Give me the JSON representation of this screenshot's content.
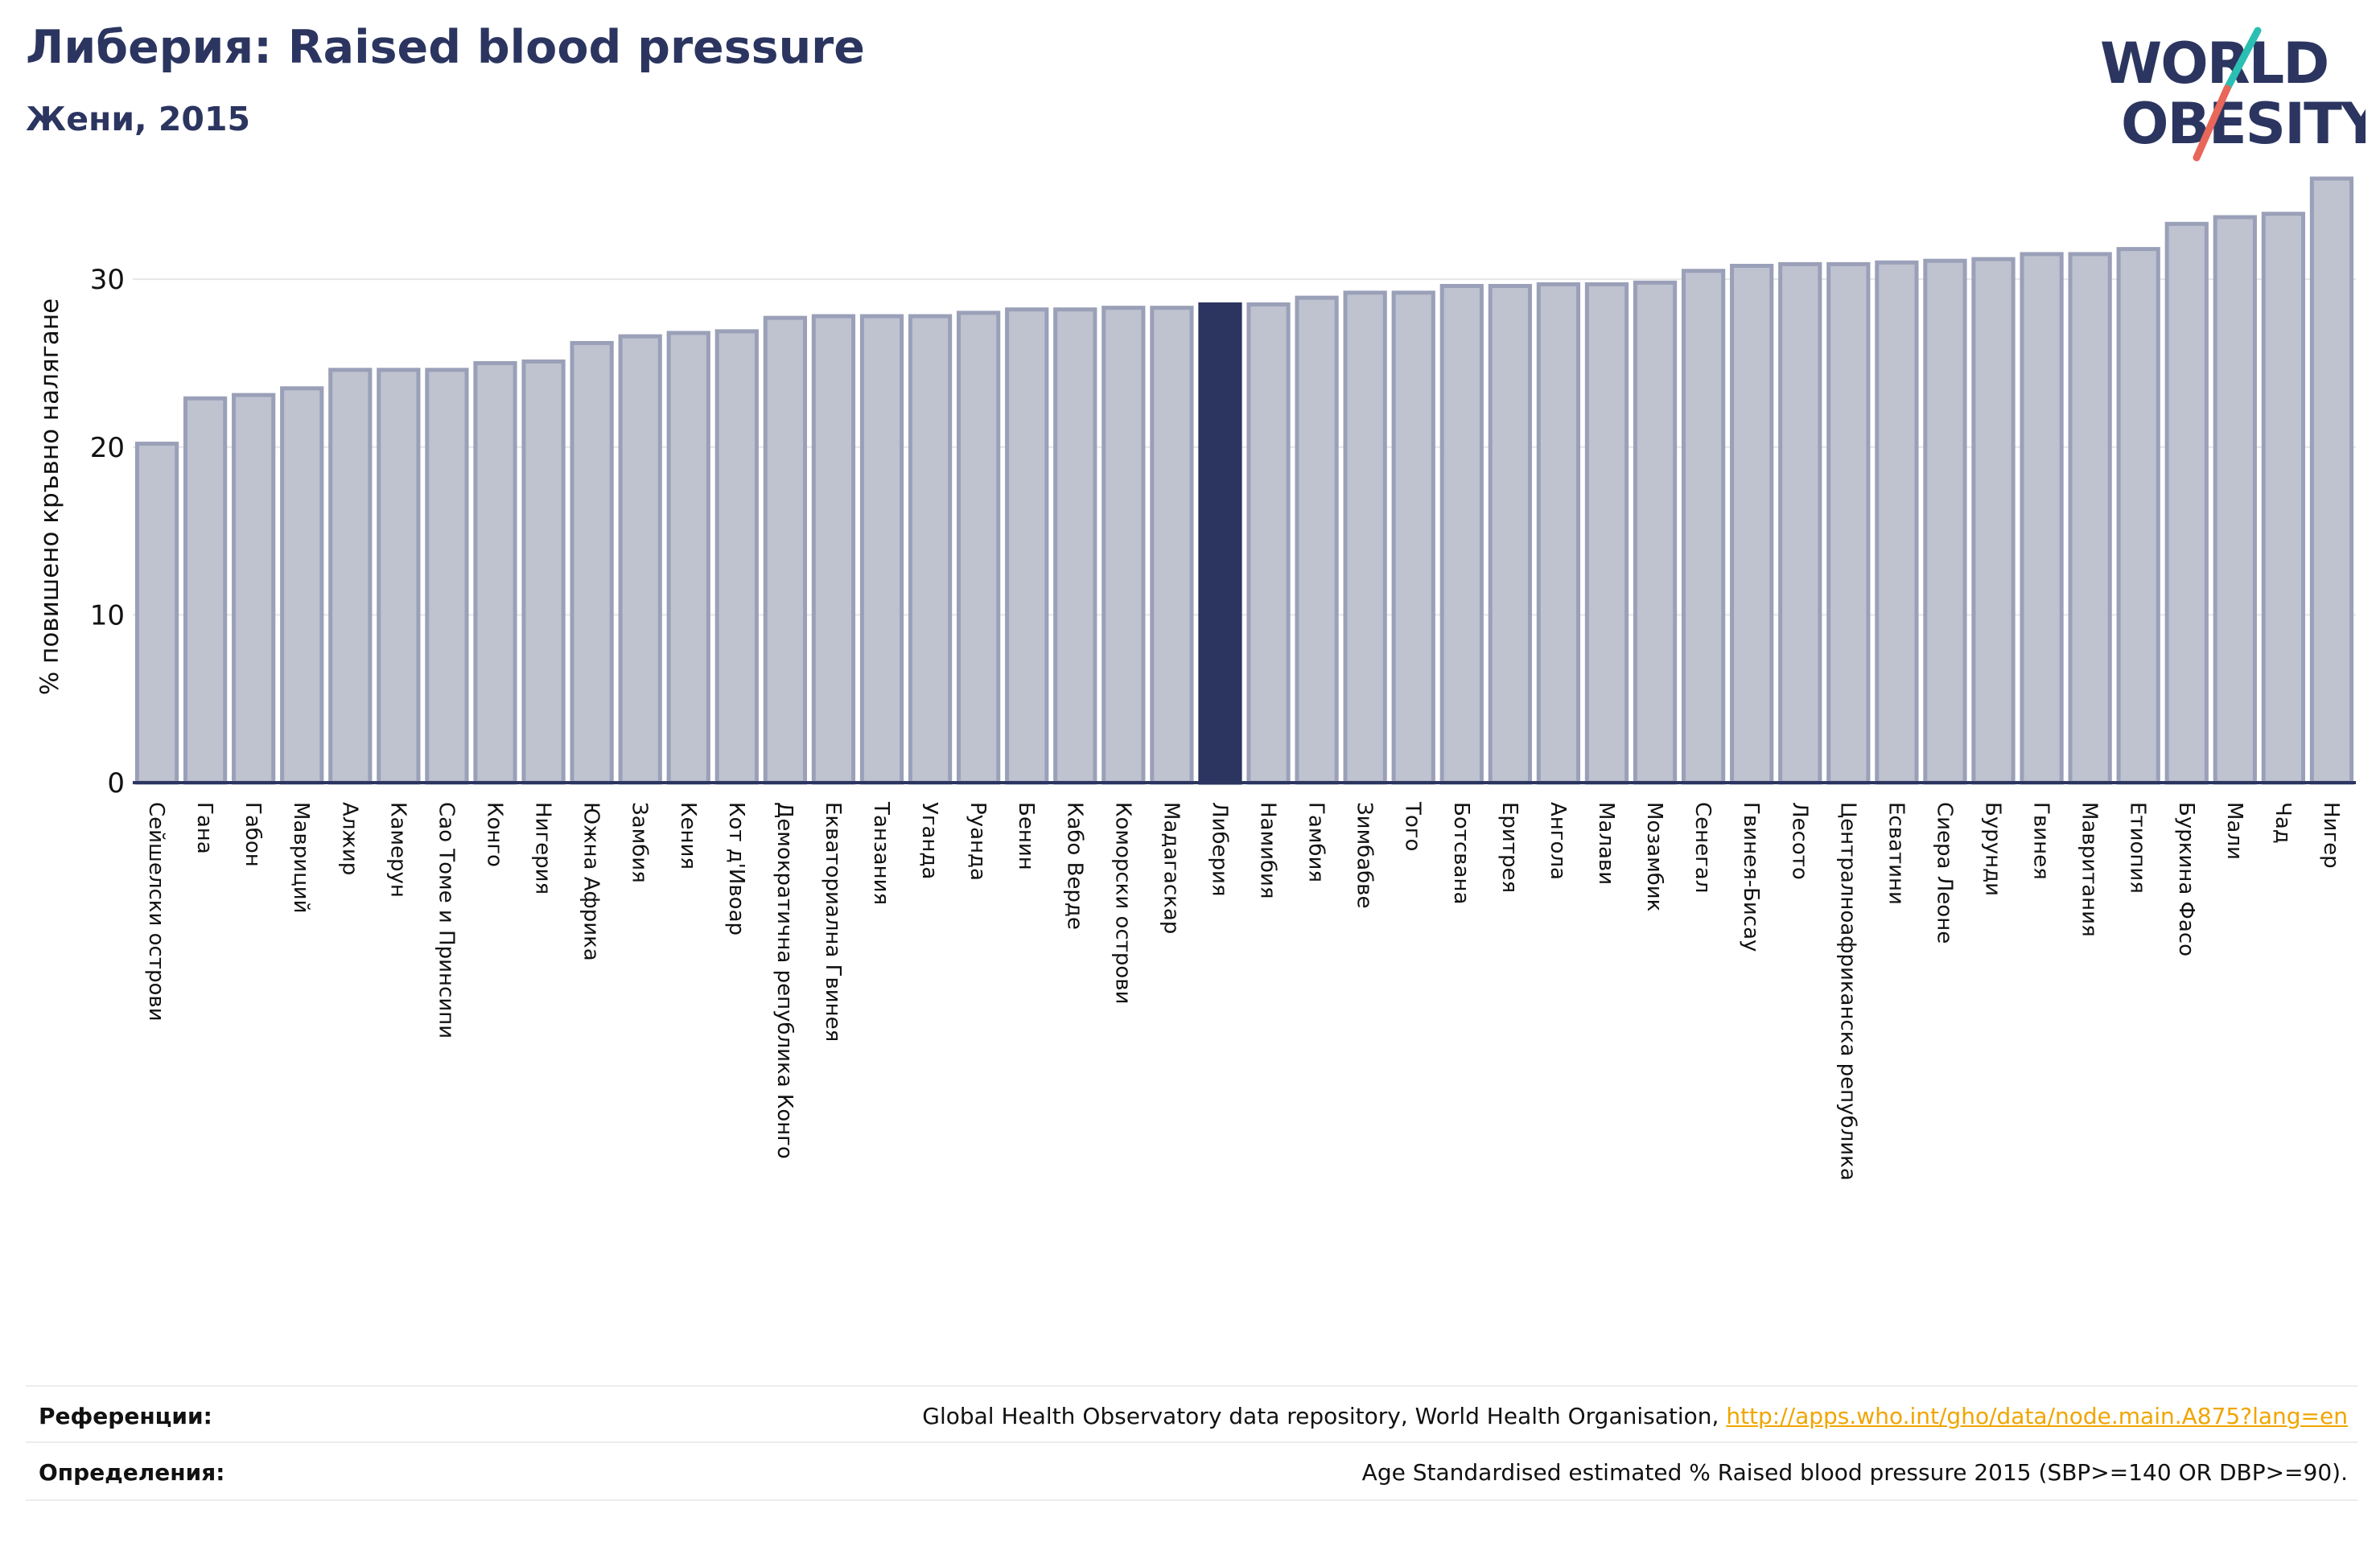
{
  "header": {
    "title": "Либерия: Raised blood pressure",
    "subtitle": "Жени, 2015"
  },
  "logo": {
    "line1": "WORLD",
    "line2": "OBESITY"
  },
  "colors": {
    "bar_default": "#bfc2cf",
    "bar_default_border": "#9aa0b8",
    "bar_highlight": "#2b3560",
    "axis": "#2b3560",
    "grid": "#e6e6e6",
    "title": "#2b3560",
    "logo_teal": "#2bbfb3",
    "logo_coral": "#e8665a",
    "link": "#f0a500"
  },
  "chart_data": {
    "type": "bar",
    "title": "Либерия: Raised blood pressure",
    "subtitle": "Жени, 2015",
    "ylabel": "% повишено кръвно налягане",
    "xlabel": "",
    "ylim": [
      0,
      36
    ],
    "yticks": [
      0,
      10,
      20,
      30
    ],
    "grid": true,
    "highlight": "Либерия",
    "categories": [
      "Сейшелски острови",
      "Гана",
      "Габон",
      "Мавриций",
      "Алжир",
      "Камерун",
      "Сао Томе и Принсипи",
      "Конго",
      "Нигерия",
      "Южна Африка",
      "Замбия",
      "Кения",
      "Кот д'Ивоар",
      "Демократична република Конго",
      "Екваториална Гвинея",
      "Танзания",
      "Уганда",
      "Руанда",
      "Бенин",
      "Кабо Верде",
      "Коморски острови",
      "Мадагаскар",
      "Либерия",
      "Намибия",
      "Гамбия",
      "Зимбабве",
      "Того",
      "Ботсвана",
      "Еритрея",
      "Ангола",
      "Малави",
      "Мозамбик",
      "Сенегал",
      "Гвинея-Бисау",
      "Лесото",
      "Централноафриканска република",
      "Есватини",
      "Сиера Леоне",
      "Бурунди",
      "Гвинея",
      "Мавритания",
      "Етиопия",
      "Буркина Фасо",
      "Мали",
      "Чад",
      "Нигер"
    ],
    "values": [
      20.2,
      22.9,
      23.1,
      23.5,
      24.6,
      24.6,
      24.6,
      25.0,
      25.1,
      26.2,
      26.6,
      26.8,
      26.9,
      27.7,
      27.8,
      27.8,
      27.8,
      28.0,
      28.2,
      28.2,
      28.3,
      28.3,
      28.5,
      28.5,
      28.9,
      29.2,
      29.2,
      29.6,
      29.6,
      29.7,
      29.7,
      29.8,
      30.5,
      30.8,
      30.9,
      30.9,
      31.0,
      31.1,
      31.2,
      31.5,
      31.5,
      31.8,
      33.3,
      33.7,
      33.9,
      36.0
    ]
  },
  "footer": {
    "references_label": "Референции:",
    "references_text": "Global Health Observatory data repository, World Health Organisation, ",
    "references_link": "http://apps.who.int/gho/data/node.main.A875?lang=en",
    "definitions_label": "Определения:",
    "definitions_text": "Age Standardised estimated % Raised blood pressure 2015 (SBP>=140 OR DBP>=90)."
  }
}
